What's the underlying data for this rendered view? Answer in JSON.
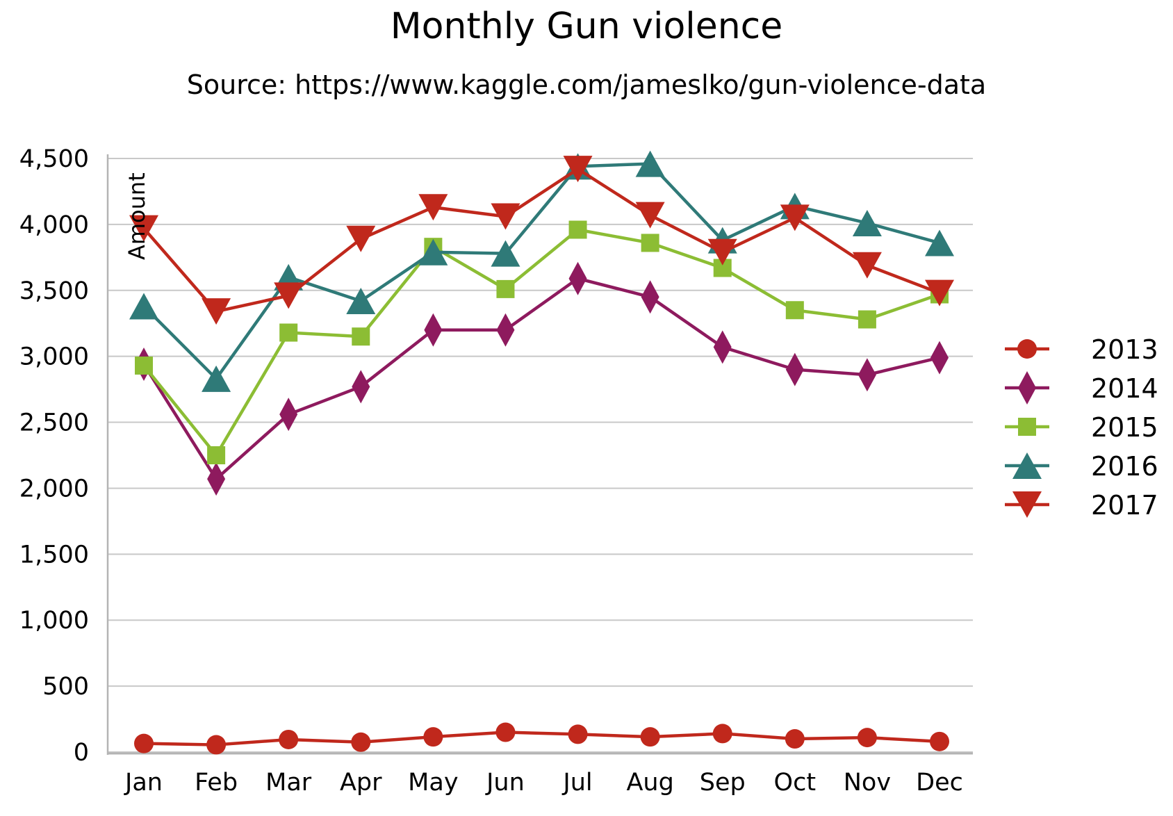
{
  "chart_data": {
    "type": "line",
    "title": "Monthly Gun violence",
    "subtitle": "Source: https://www.kaggle.com/jameslko/gun-violence-data",
    "xlabel": "",
    "ylabel": "Amount",
    "ylim": [
      0,
      4500
    ],
    "yticks": [
      0,
      500,
      1000,
      1500,
      2000,
      2500,
      3000,
      3500,
      4000,
      4500
    ],
    "ytick_labels": [
      "0",
      "500",
      "1,000",
      "1,500",
      "2,000",
      "2,500",
      "3,000",
      "3,500",
      "4,000",
      "4,500"
    ],
    "grid": true,
    "legend_position": "right",
    "categories": [
      "Jan",
      "Feb",
      "Mar",
      "Apr",
      "May",
      "Jun",
      "Jul",
      "Aug",
      "Sep",
      "Oct",
      "Nov",
      "Dec"
    ],
    "series": [
      {
        "name": "2013",
        "color": "#c0281c",
        "marker": "circle",
        "values": [
          65,
          55,
          95,
          75,
          115,
          150,
          135,
          115,
          140,
          100,
          110,
          80
        ]
      },
      {
        "name": "2014",
        "color": "#8e1a5e",
        "marker": "diamond",
        "values": [
          2940,
          2070,
          2560,
          2770,
          3200,
          3200,
          3590,
          3450,
          3070,
          2900,
          2860,
          2990
        ]
      },
      {
        "name": "2015",
        "color": "#8cbd34",
        "marker": "square",
        "values": [
          2930,
          2250,
          3180,
          3150,
          3830,
          3510,
          3960,
          3860,
          3670,
          3350,
          3280,
          3470
        ]
      },
      {
        "name": "2016",
        "color": "#2f7a78",
        "marker": "triangle-up",
        "values": [
          3380,
          2830,
          3600,
          3420,
          3790,
          3780,
          4440,
          4460,
          3880,
          4140,
          4010,
          3860
        ]
      },
      {
        "name": "2017",
        "color": "#c0281c",
        "marker": "triangle-down",
        "values": [
          3970,
          3340,
          3460,
          3890,
          4130,
          4060,
          4420,
          4070,
          3790,
          4050,
          3690,
          3480
        ]
      }
    ]
  }
}
